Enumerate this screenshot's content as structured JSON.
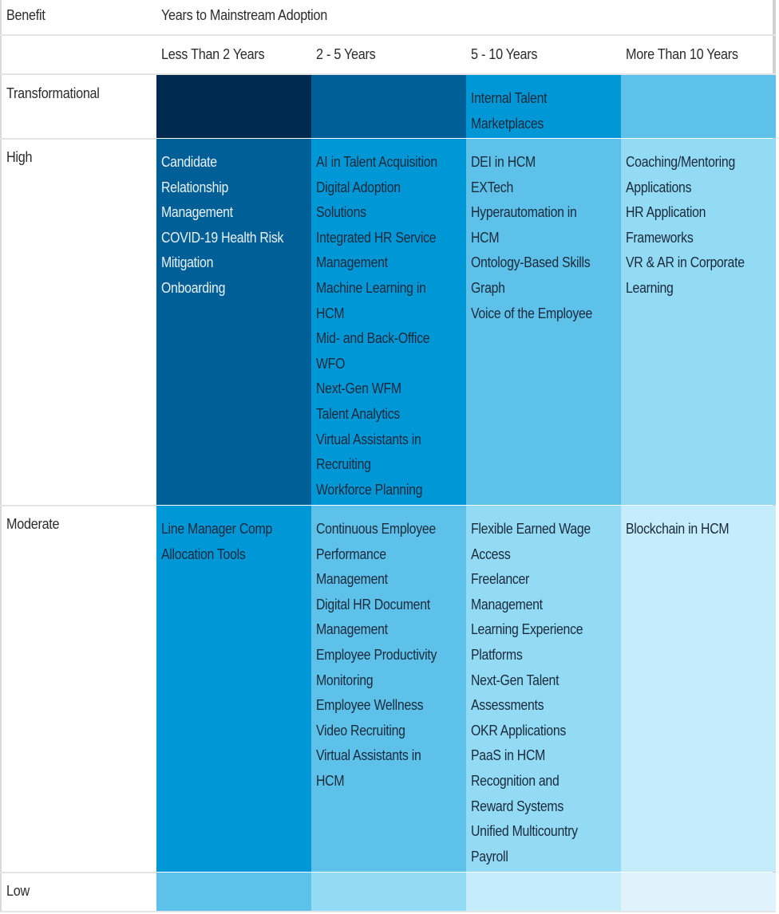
{
  "header": {
    "benefit_label": "Benefit",
    "years_label": "Years to Mainstream Adoption",
    "columns": [
      "Less Than 2 Years",
      "2 - 5 Years",
      "5 - 10 Years",
      "More Than 10 Years"
    ]
  },
  "colors": {
    "c1": "#00294f",
    "c2": "#005f96",
    "c3": "#0097d7",
    "c4": "#5ec1ea",
    "c5": "#93daf5",
    "c6": "#c5ecfb",
    "c7": "#e0f3fd"
  },
  "chart_data": {
    "type": "table",
    "title": "Years to Mainstream Adoption",
    "row_header": "Benefit",
    "columns": [
      "Less Than 2 Years",
      "2 - 5 Years",
      "5 - 10 Years",
      "More Than 10 Years"
    ],
    "rows": [
      {
        "benefit": "Transformational",
        "cells": [
          [],
          [],
          [
            "Internal Talent Marketplaces"
          ],
          []
        ]
      },
      {
        "benefit": "High",
        "cells": [
          [
            "Candidate Relationship Management",
            "COVID-19 Health Risk Mitigation",
            "Onboarding"
          ],
          [
            "AI in Talent Acquisition",
            "Digital Adoption Solutions",
            "Integrated HR Service Management",
            "Machine Learning in HCM",
            "Mid- and Back-Office WFO",
            "Next-Gen WFM",
            "Talent Analytics",
            "Virtual Assistants in Recruiting",
            "Workforce Planning"
          ],
          [
            "DEI in HCM",
            "EXTech",
            "Hyperautomation in HCM",
            "Ontology-Based Skills Graph",
            "Voice of the Employee"
          ],
          [
            "Coaching/Mentoring Applications",
            "HR Application Frameworks",
            "VR & AR in Corporate Learning"
          ]
        ]
      },
      {
        "benefit": "Moderate",
        "cells": [
          [
            "Line Manager Comp Allocation Tools"
          ],
          [
            "Continuous Employee Performance Management",
            "Digital HR Document Management",
            "Employee Productivity Monitoring",
            "Employee Wellness",
            "Video Recruiting",
            "Virtual Assistants in HCM"
          ],
          [
            "Flexible Earned Wage Access",
            "Freelancer Management",
            "Learning Experience Platforms",
            "Next-Gen Talent Assessments",
            "OKR Applications",
            "PaaS in HCM",
            "Recognition and Reward Systems",
            "Unified Multicountry Payroll"
          ],
          [
            "Blockchain in HCM"
          ]
        ]
      },
      {
        "benefit": "Low",
        "cells": [
          [],
          [],
          [],
          []
        ]
      }
    ]
  },
  "grid": {
    "rows": [
      {
        "label": "Transformational",
        "lines": [
          [],
          [],
          [
            "Internal Talent",
            "Marketplaces"
          ],
          []
        ]
      },
      {
        "label": "High",
        "lines": [
          [
            "Candidate",
            "Relationship",
            "Management",
            "COVID-19 Health Risk",
            "Mitigation",
            "Onboarding"
          ],
          [
            "AI in Talent Acquisition",
            "Digital Adoption",
            "Solutions",
            "Integrated HR Service",
            "Management",
            "Machine Learning in",
            "HCM",
            "Mid- and Back-Office",
            "WFO",
            "Next-Gen WFM",
            "Talent Analytics",
            "Virtual Assistants in",
            "Recruiting",
            "Workforce Planning"
          ],
          [
            "DEI in HCM",
            "EXTech",
            "Hyperautomation in",
            "HCM",
            "Ontology-Based Skills",
            "Graph",
            "Voice of the Employee"
          ],
          [
            "Coaching/Mentoring",
            "Applications",
            "HR Application",
            "Frameworks",
            "VR & AR in Corporate",
            "Learning"
          ]
        ]
      },
      {
        "label": "Moderate",
        "lines": [
          [
            "Line Manager Comp",
            "Allocation Tools"
          ],
          [
            "Continuous Employee",
            "Performance",
            "Management",
            "Digital HR Document",
            "Management",
            "Employee Productivity",
            "Monitoring",
            "Employee Wellness",
            "Video Recruiting",
            "Virtual Assistants in",
            "HCM"
          ],
          [
            "Flexible Earned Wage",
            "Access",
            "Freelancer",
            "Management",
            "Learning Experience",
            "Platforms",
            "Next-Gen Talent",
            "Assessments",
            "OKR Applications",
            "PaaS in HCM",
            "Recognition and",
            "Reward Systems",
            "Unified Multicountry",
            "Payroll"
          ],
          [
            "Blockchain in HCM"
          ]
        ]
      },
      {
        "label": "Low",
        "lines": [
          [],
          [],
          [],
          []
        ]
      }
    ]
  }
}
